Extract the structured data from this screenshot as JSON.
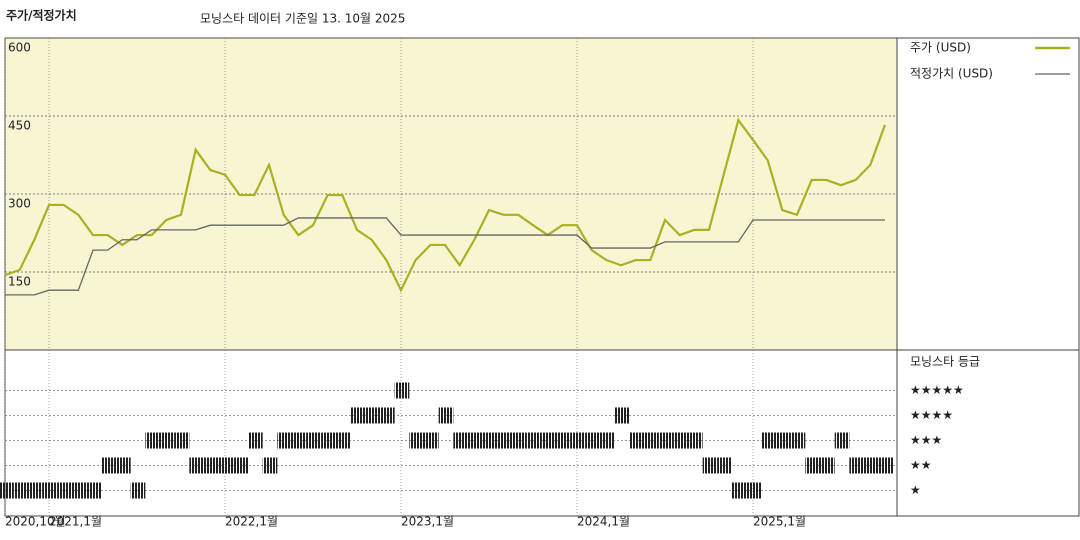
{
  "header": {
    "title": "주가/적정가치",
    "subtitle": "모닝스타 데이터 기준일 13. 10월 2025"
  },
  "chart_data": [
    {
      "type": "line",
      "x": [
        "2020-10",
        "2020-11",
        "2020-12",
        "2021-01",
        "2021-02",
        "2021-03",
        "2021-04",
        "2021-05",
        "2021-06",
        "2021-07",
        "2021-08",
        "2021-09",
        "2021-10",
        "2021-11",
        "2021-12",
        "2022-01",
        "2022-02",
        "2022-03",
        "2022-04",
        "2022-05",
        "2022-06",
        "2022-07",
        "2022-08",
        "2022-09",
        "2022-10",
        "2022-11",
        "2022-12",
        "2023-01",
        "2023-02",
        "2023-03",
        "2023-04",
        "2023-05",
        "2023-06",
        "2023-07",
        "2023-08",
        "2023-09",
        "2023-10",
        "2023-11",
        "2023-12",
        "2024-01",
        "2024-02",
        "2024-03",
        "2024-04",
        "2024-05",
        "2024-06",
        "2024-07",
        "2024-08",
        "2024-09",
        "2024-10",
        "2024-11",
        "2024-12",
        "2025-01",
        "2025-02",
        "2025-03",
        "2025-04",
        "2025-05",
        "2025-06",
        "2025-07",
        "2025-08",
        "2025-09",
        "2025-10"
      ],
      "series": [
        {
          "name": "주가 (USD)",
          "color": "#a8b024",
          "values": [
            144,
            154,
            212,
            279,
            279,
            260,
            221,
            221,
            202,
            221,
            221,
            250,
            260,
            385,
            346,
            337,
            298,
            298,
            356,
            260,
            221,
            240,
            298,
            298,
            231,
            212,
            173,
            115,
            173,
            202,
            202,
            163,
            212,
            269,
            260,
            260,
            240,
            221,
            240,
            240,
            192,
            173,
            163,
            173,
            173,
            250,
            221,
            231,
            231,
            337,
            442,
            404,
            365,
            269,
            260,
            327,
            327,
            317,
            327,
            356,
            433
          ]
        },
        {
          "name": "적정가치 (USD)",
          "color": "#666666",
          "values": [
            106,
            106,
            106,
            115,
            115,
            115,
            192,
            192,
            212,
            212,
            231,
            231,
            231,
            231,
            240,
            240,
            240,
            240,
            240,
            240,
            254,
            254,
            254,
            254,
            254,
            254,
            254,
            221,
            221,
            221,
            221,
            221,
            221,
            221,
            221,
            221,
            221,
            221,
            221,
            221,
            196,
            196,
            196,
            196,
            196,
            208,
            208,
            208,
            208,
            208,
            208,
            250,
            250,
            250,
            250,
            250,
            250,
            250,
            250,
            250,
            250
          ]
        }
      ],
      "ylim": [
        0,
        600
      ],
      "yticks": [
        150,
        300,
        450,
        600
      ],
      "grid": true,
      "xticks": [
        {
          "value": "2020-10",
          "label": "2020,10월"
        },
        {
          "value": "2021-01",
          "label": "2021,1월"
        },
        {
          "value": "2022-01",
          "label": "2022,1월"
        },
        {
          "value": "2023-01",
          "label": "2023,1월"
        },
        {
          "value": "2024-01",
          "label": "2024,1월"
        },
        {
          "value": "2025-01",
          "label": "2025,1월"
        }
      ]
    },
    {
      "type": "rating",
      "title": "모닝스타 등급",
      "color": "#222222",
      "x": [
        "2020-10",
        "2020-11",
        "2020-12",
        "2021-01",
        "2021-02",
        "2021-03",
        "2021-04",
        "2021-05",
        "2021-06",
        "2021-07",
        "2021-08",
        "2021-09",
        "2021-10",
        "2021-11",
        "2021-12",
        "2022-01",
        "2022-02",
        "2022-03",
        "2022-04",
        "2022-05",
        "2022-06",
        "2022-07",
        "2022-08",
        "2022-09",
        "2022-10",
        "2022-11",
        "2022-12",
        "2023-01",
        "2023-02",
        "2023-03",
        "2023-04",
        "2023-05",
        "2023-06",
        "2023-07",
        "2023-08",
        "2023-09",
        "2023-10",
        "2023-11",
        "2023-12",
        "2024-01",
        "2024-02",
        "2024-03",
        "2024-04",
        "2024-05",
        "2024-06",
        "2024-07",
        "2024-08",
        "2024-09",
        "2024-10",
        "2024-11",
        "2024-12",
        "2025-01",
        "2025-02",
        "2025-03",
        "2025-04",
        "2025-05",
        "2025-06",
        "2025-07",
        "2025-08",
        "2025-09",
        "2025-10"
      ],
      "values": [
        1,
        1,
        1,
        1,
        1,
        1,
        1,
        2,
        2,
        1,
        3,
        3,
        3,
        2,
        2,
        2,
        2,
        3,
        2,
        3,
        3,
        3,
        3,
        3,
        4,
        4,
        4,
        5,
        3,
        3,
        4,
        3,
        3,
        3,
        3,
        3,
        3,
        3,
        3,
        3,
        3,
        3,
        4,
        3,
        3,
        3,
        3,
        3,
        2,
        2,
        1,
        1,
        3,
        3,
        3,
        2,
        2,
        3,
        2,
        2,
        2
      ],
      "ylim": [
        0.5,
        5.5
      ],
      "yticks": [
        {
          "value": 5,
          "label": "★★★★★"
        },
        {
          "value": 4,
          "label": "★★★★"
        },
        {
          "value": 3,
          "label": "★★★"
        },
        {
          "value": 2,
          "label": "★★"
        },
        {
          "value": 1,
          "label": "★"
        }
      ]
    }
  ]
}
